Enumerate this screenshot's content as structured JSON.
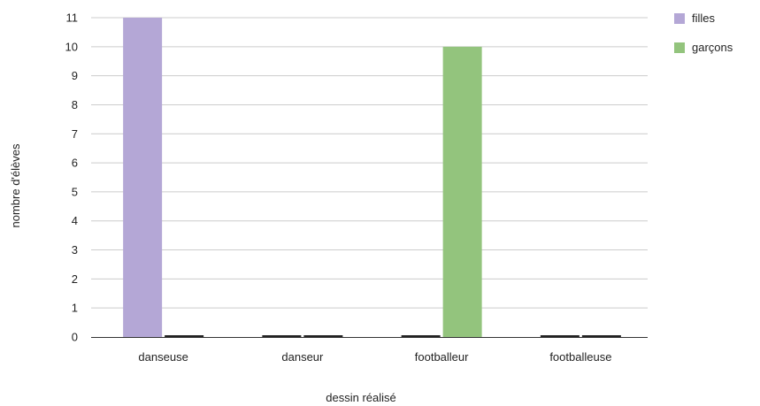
{
  "chart_data": {
    "type": "bar",
    "title": "",
    "xlabel": "dessin réalisé",
    "ylabel": "nombre d'élèves",
    "categories": [
      "danseuse",
      "danseur",
      "footballeur",
      "footballeuse"
    ],
    "series": [
      {
        "name": "filles",
        "color": "#b4a7d6",
        "values": [
          11,
          0,
          0,
          0
        ]
      },
      {
        "name": "garçons",
        "color": "#93c47d",
        "values": [
          0,
          0,
          10,
          0
        ]
      }
    ],
    "ylim": [
      0,
      11
    ],
    "yticks": [
      0,
      1,
      2,
      3,
      4,
      5,
      6,
      7,
      8,
      9,
      10,
      11
    ],
    "grid": true,
    "legend_position": "top-right"
  }
}
